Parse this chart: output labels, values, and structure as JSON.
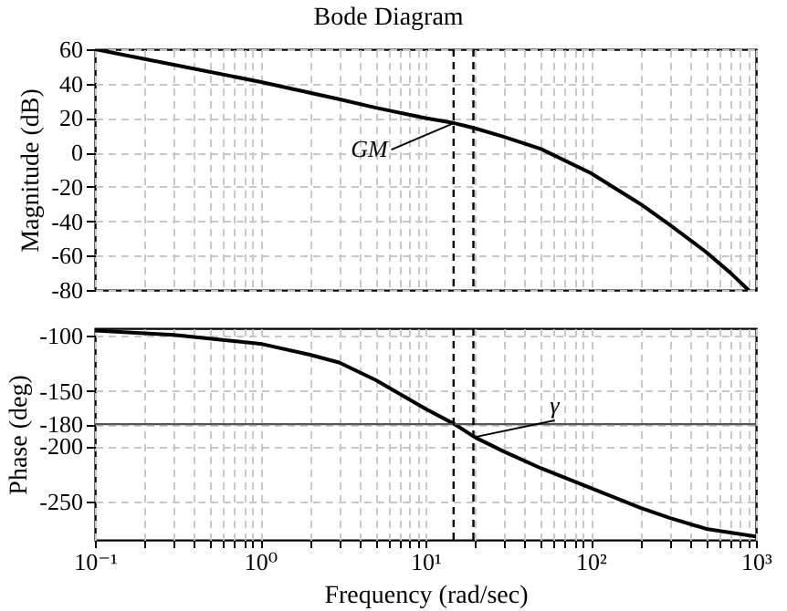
{
  "chart_data": [
    {
      "type": "line",
      "title": "Bode Diagram",
      "ylabel": "Magnitude (dB)",
      "x": [
        0.1,
        0.3,
        1,
        3,
        5,
        10,
        15,
        20,
        30,
        50,
        100,
        200,
        300,
        500,
        700,
        900
      ],
      "series": [
        {
          "color": "#000000",
          "values": [
            60,
            51,
            41,
            31,
            26,
            20,
            17,
            14,
            9,
            2,
            -12,
            -30,
            -42,
            -58,
            -70,
            -80
          ]
        }
      ],
      "log": "x",
      "xlim": [
        0.1,
        1000
      ],
      "ylim": [
        -80,
        60
      ],
      "xticks": [
        {
          "value": 0.1,
          "label": null
        },
        {
          "value": 0.2,
          "label": null
        },
        {
          "value": 0.3,
          "label": null
        },
        {
          "value": 0.4,
          "label": null
        },
        {
          "value": 0.5,
          "label": null
        },
        {
          "value": 0.6,
          "label": null
        },
        {
          "value": 0.7,
          "label": null
        },
        {
          "value": 0.8,
          "label": null
        },
        {
          "value": 0.9,
          "label": null
        },
        {
          "value": 1,
          "label": null
        },
        {
          "value": 2,
          "label": null
        },
        {
          "value": 3,
          "label": null
        },
        {
          "value": 4,
          "label": null
        },
        {
          "value": 5,
          "label": null
        },
        {
          "value": 6,
          "label": null
        },
        {
          "value": 7,
          "label": null
        },
        {
          "value": 8,
          "label": null
        },
        {
          "value": 9,
          "label": null
        },
        {
          "value": 10,
          "label": null
        },
        {
          "value": 20,
          "label": null
        },
        {
          "value": 30,
          "label": null
        },
        {
          "value": 40,
          "label": null
        },
        {
          "value": 50,
          "label": null
        },
        {
          "value": 60,
          "label": null
        },
        {
          "value": 70,
          "label": null
        },
        {
          "value": 80,
          "label": null
        },
        {
          "value": 90,
          "label": null
        },
        {
          "value": 100,
          "label": null
        },
        {
          "value": 200,
          "label": null
        },
        {
          "value": 300,
          "label": null
        },
        {
          "value": 400,
          "label": null
        },
        {
          "value": 500,
          "label": null
        },
        {
          "value": 600,
          "label": null
        },
        {
          "value": 700,
          "label": null
        },
        {
          "value": 800,
          "label": null
        },
        {
          "value": 900,
          "label": null
        },
        {
          "value": 1000,
          "label": null
        }
      ],
      "yticks": [
        -80,
        -60,
        -40,
        -20,
        0,
        20,
        40,
        60
      ],
      "tick_labels": "y",
      "grid": true,
      "marker": "none",
      "line_style": "solid",
      "ref_lines": [
        {
          "axis": "x",
          "value": 14.8,
          "line_style": "dashed",
          "color": "#000000"
        },
        {
          "axis": "x",
          "value": 19.5,
          "line_style": "dashed",
          "color": "#000000"
        }
      ],
      "annotations": [
        {
          "text": "GM",
          "x": 14.8,
          "y": 17
        }
      ]
    },
    {
      "type": "line",
      "xlabel": "Frequency (rad/sec)",
      "ylabel": "Phase (deg)",
      "x": [
        0.1,
        0.3,
        1,
        2,
        3,
        5,
        10,
        15,
        20,
        30,
        50,
        100,
        200,
        300,
        500,
        1000
      ],
      "series": [
        {
          "color": "#000000",
          "values": [
            -95,
            -99,
            -107,
            -117,
            -124,
            -140,
            -166,
            -180,
            -192,
            -205,
            -220,
            -238,
            -256,
            -265,
            -275,
            -282
          ]
        }
      ],
      "log": "x",
      "xlim": [
        0.1,
        1000
      ],
      "ylim": [
        -285,
        -93
      ],
      "xticks": [
        {
          "value": 0.1,
          "label": "10⁻¹"
        },
        {
          "value": 0.2,
          "label": null
        },
        {
          "value": 0.3,
          "label": null
        },
        {
          "value": 0.4,
          "label": null
        },
        {
          "value": 0.5,
          "label": null
        },
        {
          "value": 0.6,
          "label": null
        },
        {
          "value": 0.7,
          "label": null
        },
        {
          "value": 0.8,
          "label": null
        },
        {
          "value": 0.9,
          "label": null
        },
        {
          "value": 1,
          "label": "10⁰"
        },
        {
          "value": 2,
          "label": null
        },
        {
          "value": 3,
          "label": null
        },
        {
          "value": 4,
          "label": null
        },
        {
          "value": 5,
          "label": null
        },
        {
          "value": 6,
          "label": null
        },
        {
          "value": 7,
          "label": null
        },
        {
          "value": 8,
          "label": null
        },
        {
          "value": 9,
          "label": null
        },
        {
          "value": 10,
          "label": "10¹"
        },
        {
          "value": 20,
          "label": null
        },
        {
          "value": 30,
          "label": null
        },
        {
          "value": 40,
          "label": null
        },
        {
          "value": 50,
          "label": null
        },
        {
          "value": 60,
          "label": null
        },
        {
          "value": 70,
          "label": null
        },
        {
          "value": 80,
          "label": null
        },
        {
          "value": 90,
          "label": null
        },
        {
          "value": 100,
          "label": "10²"
        },
        {
          "value": 200,
          "label": null
        },
        {
          "value": 300,
          "label": null
        },
        {
          "value": 400,
          "label": null
        },
        {
          "value": 500,
          "label": null
        },
        {
          "value": 600,
          "label": null
        },
        {
          "value": 700,
          "label": null
        },
        {
          "value": 800,
          "label": null
        },
        {
          "value": 900,
          "label": null
        },
        {
          "value": 1000,
          "label": "10³"
        }
      ],
      "yticks": [
        -250,
        -200,
        -180,
        -150,
        -100
      ],
      "grid": true,
      "marker": "none",
      "line_style": "solid",
      "ref_lines": [
        {
          "axis": "y",
          "value": -180,
          "line_style": "solid",
          "color": "#555555"
        },
        {
          "axis": "x",
          "value": 14.8,
          "line_style": "dashed",
          "color": "#000000"
        },
        {
          "axis": "x",
          "value": 19.5,
          "line_style": "dashed",
          "color": "#000000"
        }
      ],
      "annotations": [
        {
          "text": "γ",
          "x": 19.5,
          "y": -192
        }
      ]
    }
  ]
}
